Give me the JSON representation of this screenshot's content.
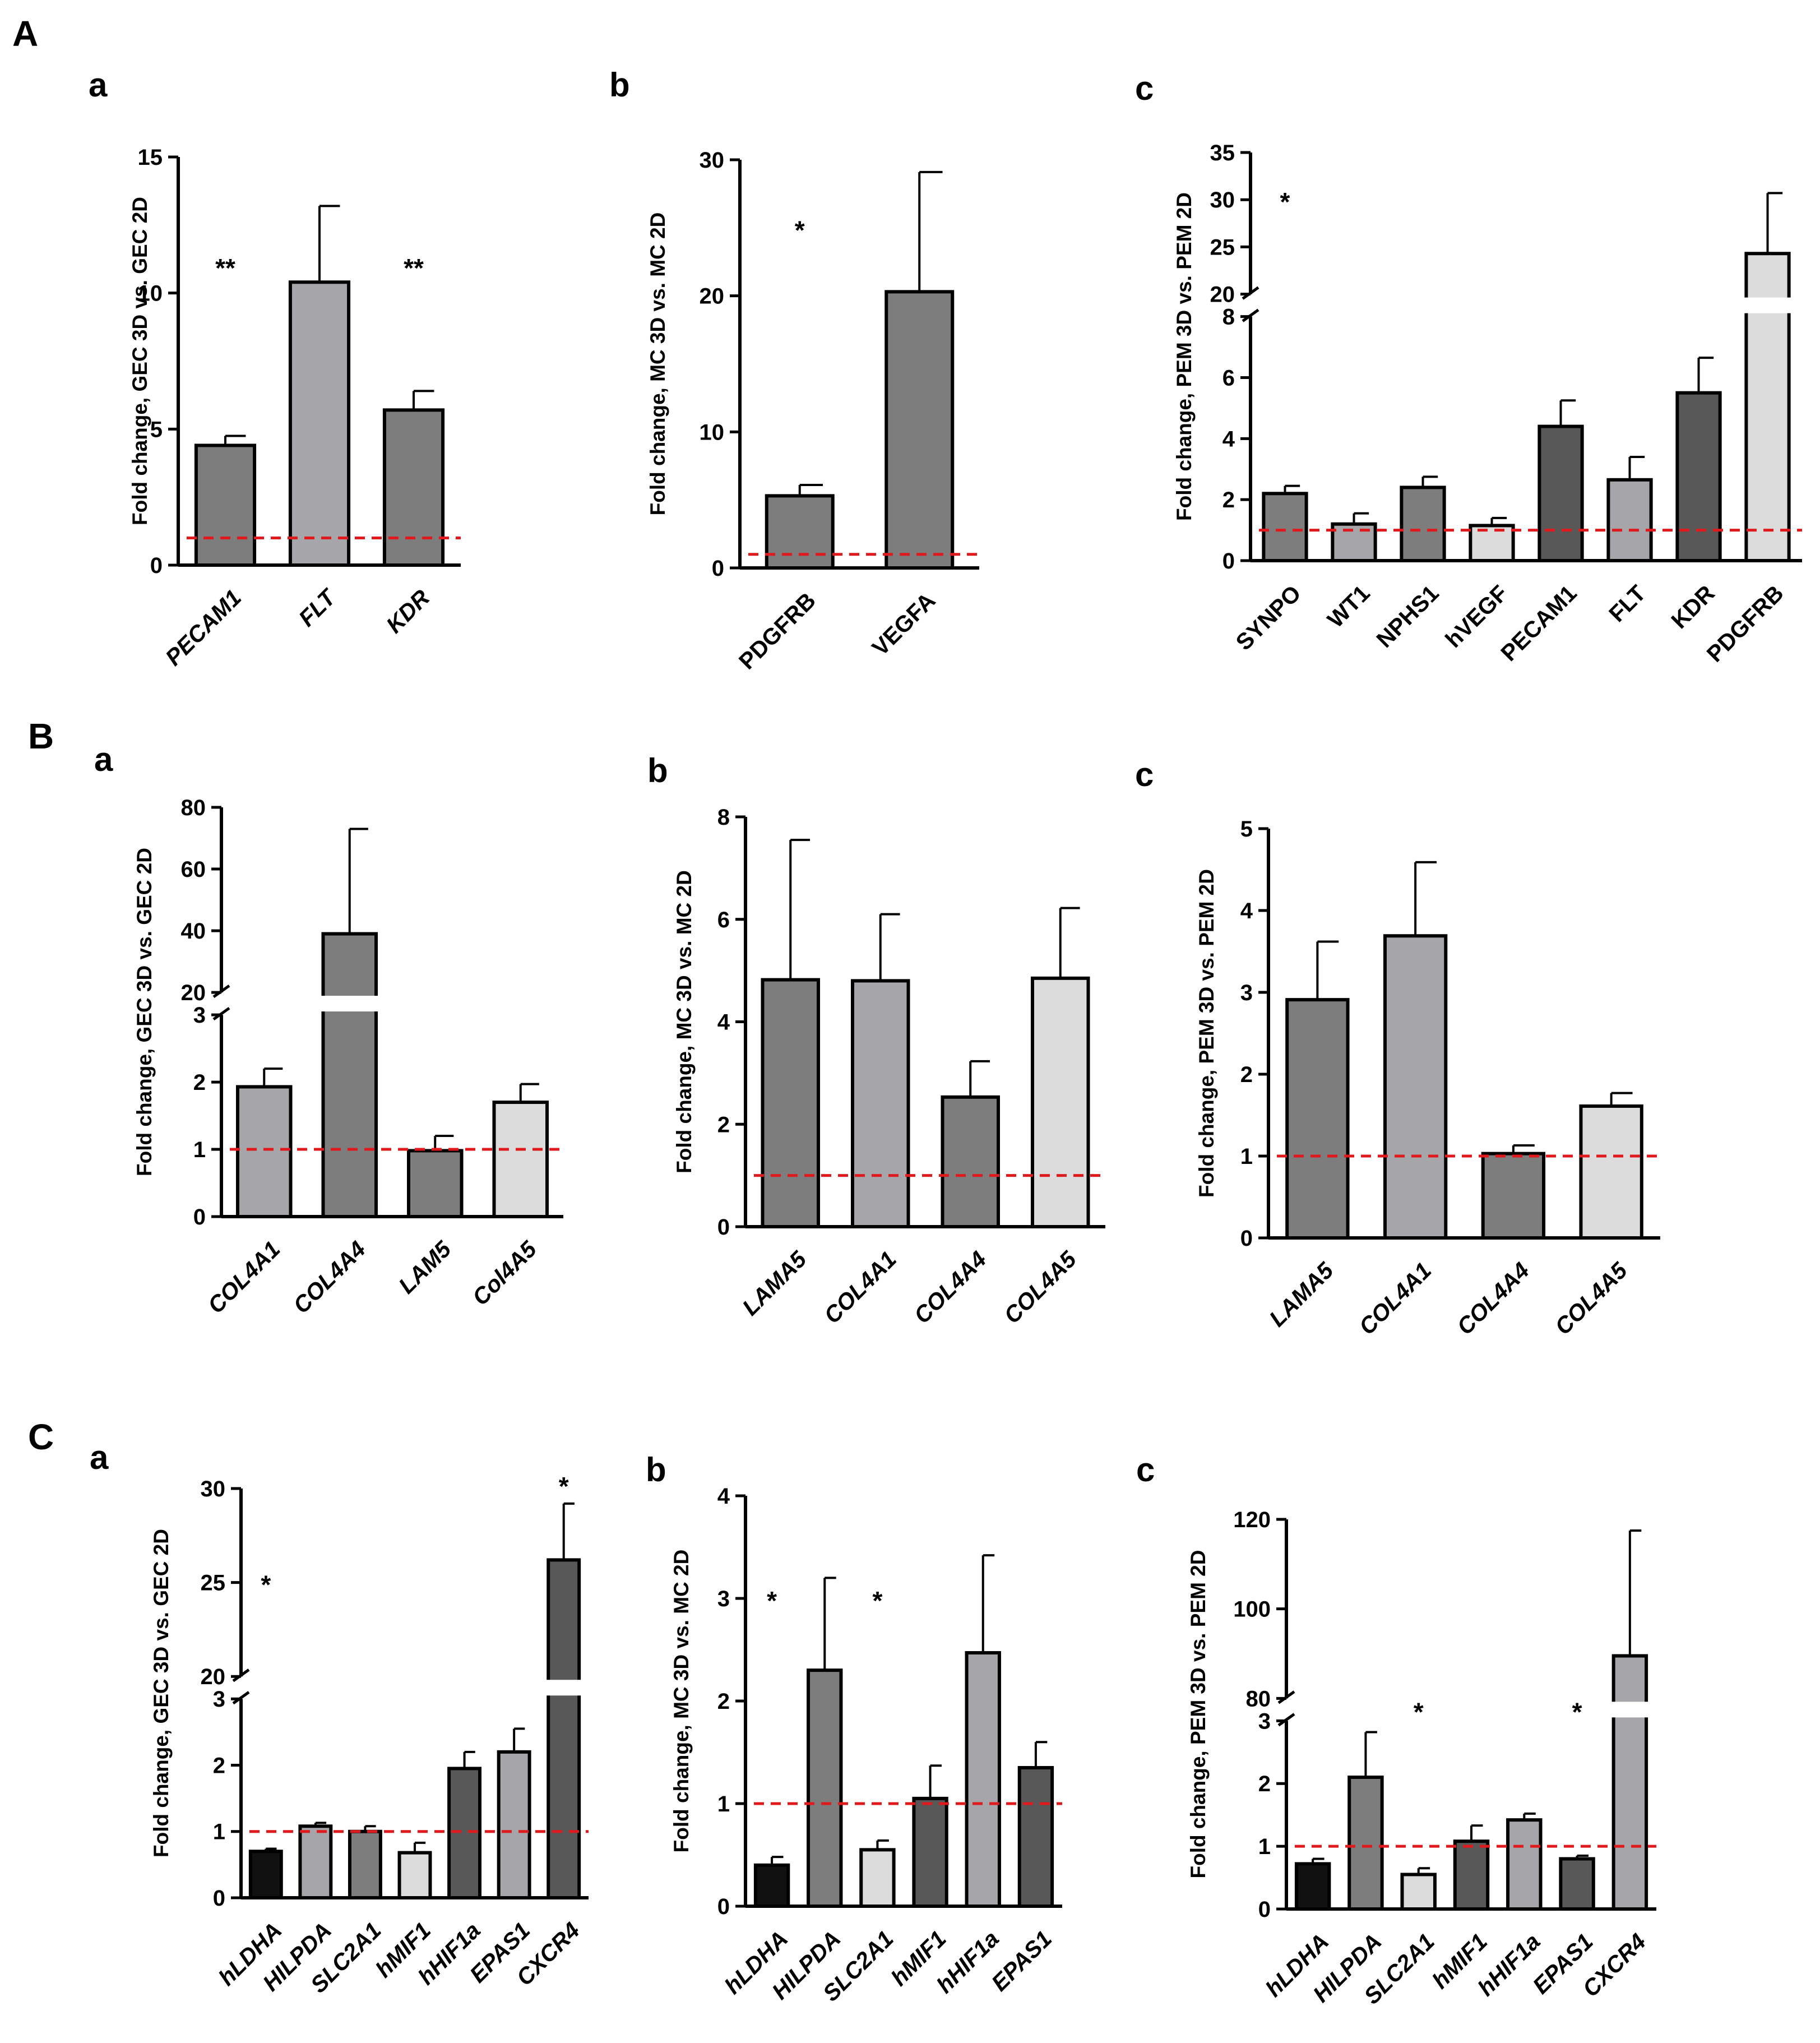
{
  "figure": {
    "sections": [
      {
        "label": "A"
      },
      {
        "label": "B"
      },
      {
        "label": "C"
      }
    ]
  },
  "colors": {
    "black": "#111111",
    "dark": "#585858",
    "mid": "#7d7d7d",
    "light": "#a6a6aa",
    "lightest": "#dcdcdc",
    "reference_line": "#e0191c"
  },
  "chart_data": [
    {
      "id": "A-a",
      "section": "A",
      "panel": "a",
      "type": "bar",
      "ylabel": "Fold change, GEC 3D vs. GEC 2D",
      "italic_categories": true,
      "categories": [
        "PECAM1",
        "FLT",
        "KDR"
      ],
      "values": [
        4.4,
        10.4,
        5.7
      ],
      "errors": [
        0.35,
        2.8,
        0.7
      ],
      "shades": [
        "mid",
        "light",
        "mid"
      ],
      "significance": [
        "**",
        "",
        "**"
      ],
      "ylim": [
        0,
        15
      ],
      "yticks": [
        0,
        5,
        10,
        15
      ],
      "reference_line": 1
    },
    {
      "id": "A-b",
      "section": "A",
      "panel": "b",
      "type": "bar",
      "ylabel": "Fold change, MC 3D vs. MC 2D",
      "italic_categories": false,
      "categories": [
        "PDGFRB",
        "VEGFA"
      ],
      "values": [
        5.3,
        20.3
      ],
      "errors": [
        0.8,
        8.8
      ],
      "shades": [
        "mid",
        "mid"
      ],
      "significance": [
        "*",
        ""
      ],
      "ylim": [
        0,
        30
      ],
      "yticks": [
        0,
        10,
        20,
        30
      ],
      "reference_line": 1
    },
    {
      "id": "A-c",
      "section": "A",
      "panel": "c",
      "type": "bar",
      "ylabel": "Fold change, PEM 3D vs. PEM 2D",
      "italic_categories": false,
      "categories": [
        "SYNPO",
        "WT1",
        "NPHS1",
        "hVEGF",
        "PECAM1",
        "FLT",
        "KDR",
        "PDGFRB"
      ],
      "values": [
        2.2,
        1.2,
        2.4,
        1.15,
        4.4,
        2.65,
        5.5,
        24.3
      ],
      "errors": [
        0.25,
        0.35,
        0.35,
        0.25,
        0.85,
        0.75,
        1.15,
        6.4
      ],
      "shades": [
        "mid",
        "light",
        "mid",
        "lightest",
        "dark",
        "light",
        "dark",
        "lightest"
      ],
      "significance": [
        "*",
        "",
        "",
        "",
        "",
        "",
        "",
        ""
      ],
      "ylim": [
        0,
        35
      ],
      "axis_break": [
        8,
        20
      ],
      "yticks": [
        0,
        2,
        4,
        6,
        8,
        20,
        25,
        30,
        35
      ],
      "reference_line": 1
    },
    {
      "id": "B-a",
      "section": "B",
      "panel": "a",
      "type": "bar",
      "ylabel": "Fold change, GEC 3D vs. GEC 2D",
      "italic_categories": true,
      "categories": [
        "COL4A1",
        "COL4A4",
        "LAM5",
        "Col4A5"
      ],
      "values": [
        1.93,
        39,
        0.98,
        1.7
      ],
      "errors": [
        0.27,
        34,
        0.22,
        0.27
      ],
      "shades": [
        "light",
        "mid",
        "mid",
        "lightest"
      ],
      "significance": [
        "",
        "",
        "",
        ""
      ],
      "ylim": [
        0,
        80
      ],
      "axis_break": [
        3,
        20
      ],
      "yticks": [
        0,
        1,
        2,
        3,
        20,
        40,
        60,
        80
      ],
      "reference_line": 1
    },
    {
      "id": "B-b",
      "section": "B",
      "panel": "b",
      "type": "bar",
      "ylabel": "Fold change, MC 3D vs. MC 2D",
      "italic_categories": true,
      "categories": [
        "LAMA5",
        "COL4A1",
        "COL4A4",
        "COL4A5"
      ],
      "values": [
        4.82,
        4.8,
        2.53,
        4.85
      ],
      "errors": [
        2.73,
        1.3,
        0.7,
        1.37
      ],
      "shades": [
        "mid",
        "light",
        "mid",
        "lightest"
      ],
      "significance": [
        "",
        "",
        "",
        ""
      ],
      "ylim": [
        0,
        8
      ],
      "yticks": [
        0,
        2,
        4,
        6,
        8
      ],
      "reference_line": 1
    },
    {
      "id": "B-c",
      "section": "B",
      "panel": "c",
      "type": "bar",
      "ylabel": "Fold change, PEM 3D vs. PEM 2D",
      "italic_categories": true,
      "categories": [
        "LAMA5",
        "COL4A1",
        "COL4A4",
        "COL4A5"
      ],
      "values": [
        2.91,
        3.69,
        1.03,
        1.61
      ],
      "errors": [
        0.71,
        0.9,
        0.1,
        0.16
      ],
      "shades": [
        "mid",
        "light",
        "mid",
        "lightest"
      ],
      "significance": [
        "",
        "",
        "",
        ""
      ],
      "ylim": [
        0,
        5
      ],
      "yticks": [
        0,
        1,
        2,
        3,
        4,
        5
      ],
      "reference_line": 1
    },
    {
      "id": "C-a",
      "section": "C",
      "panel": "a",
      "type": "bar",
      "ylabel": "Fold change, GEC 3D vs. GEC 2D",
      "italic_categories": true,
      "categories": [
        "hLDHA",
        "HILPDA",
        "SLC2A1",
        "hMIF1",
        "hHIF1a",
        "EPAS1",
        "CXCR4"
      ],
      "values": [
        0.7,
        1.08,
        1.0,
        0.68,
        1.95,
        2.2,
        26.2
      ],
      "errors": [
        0.04,
        0.05,
        0.08,
        0.15,
        0.25,
        0.35,
        3.0
      ],
      "shades": [
        "black",
        "light",
        "mid",
        "lightest",
        "dark",
        "light",
        "dark"
      ],
      "significance": [
        "*",
        "",
        "",
        "",
        "",
        "",
        "*"
      ],
      "ylim": [
        0,
        30
      ],
      "axis_break": [
        3,
        20
      ],
      "yticks": [
        0,
        1,
        2,
        3,
        20,
        25,
        30
      ],
      "reference_line": 1
    },
    {
      "id": "C-b",
      "section": "C",
      "panel": "b",
      "type": "bar",
      "ylabel": "Fold change, MC 3D vs. MC 2D",
      "italic_categories": true,
      "categories": [
        "hLDHA",
        "HILPDA",
        "SLC2A1",
        "hMIF1",
        "hHIF1a",
        "EPAS1"
      ],
      "values": [
        0.4,
        2.3,
        0.55,
        1.05,
        2.47,
        1.35
      ],
      "errors": [
        0.08,
        0.9,
        0.09,
        0.32,
        0.95,
        0.25
      ],
      "shades": [
        "black",
        "mid",
        "lightest",
        "dark",
        "light",
        "dark"
      ],
      "significance": [
        "*",
        "",
        "*",
        "",
        "",
        ""
      ],
      "ylim": [
        0,
        4
      ],
      "yticks": [
        0,
        1,
        2,
        3,
        4
      ],
      "reference_line": 1
    },
    {
      "id": "C-c",
      "section": "C",
      "panel": "c",
      "type": "bar",
      "ylabel": "Fold change, PEM 3D vs. PEM 2D",
      "italic_categories": true,
      "categories": [
        "hLDHA",
        "HILPDA",
        "SLC2A1",
        "hMIF1",
        "hHIF1a",
        "EPAS1",
        "CXCR4"
      ],
      "values": [
        0.72,
        2.1,
        0.55,
        1.08,
        1.42,
        0.8,
        89.5
      ],
      "errors": [
        0.08,
        0.72,
        0.1,
        0.25,
        0.1,
        0.05,
        28
      ],
      "shades": [
        "black",
        "mid",
        "lightest",
        "dark",
        "light",
        "dark",
        "light"
      ],
      "significance": [
        "",
        "",
        "*",
        "",
        "",
        "*",
        ""
      ],
      "ylim": [
        0,
        120
      ],
      "axis_break": [
        3,
        80
      ],
      "yticks": [
        0,
        1,
        2,
        3,
        80,
        100,
        120
      ],
      "reference_line": 1
    }
  ]
}
